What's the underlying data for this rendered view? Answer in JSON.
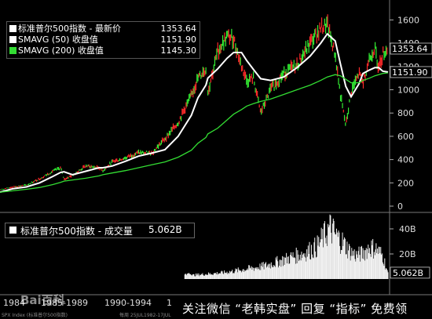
{
  "chart_data": [
    {
      "type": "line",
      "panel": "price",
      "y_axis_side": "right",
      "ylim": [
        0,
        1650
      ],
      "y_ticks": [
        "1600",
        "1400",
        "1200",
        "1000",
        "800",
        "600",
        "400",
        "200",
        "0"
      ],
      "y_tick_values": [
        1600,
        1400,
        1200,
        1000,
        800,
        600,
        400,
        200,
        0
      ],
      "x": [
        1983.0,
        1984.0,
        1985.0,
        1986.0,
        1987.0,
        1987.6,
        1987.85,
        1988.5,
        1989.5,
        1990.5,
        1990.8,
        1991.5,
        1992.5,
        1993.5,
        1994.5,
        1995.5,
        1996.5,
        1997.5,
        1998.0,
        1998.6,
        1998.75,
        1999.5,
        2000.2,
        2000.7,
        2001.3,
        2001.7,
        2002.2,
        2002.75,
        2003.5,
        2004.5,
        2005.5,
        2006.5,
        2007.3,
        2007.8,
        2008.4,
        2008.8,
        2009.2,
        2009.6,
        2010.2,
        2010.5,
        2011.0,
        2011.4,
        2011.7,
        2012.0,
        2012.4
      ],
      "series": [
        {
          "name": "标准普尔500指数",
          "color": "#ff2020",
          "values": [
            140,
            165,
            180,
            235,
            300,
            330,
            230,
            265,
            345,
            330,
            305,
            380,
            415,
            460,
            455,
            580,
            720,
            950,
            1100,
            1180,
            980,
            1330,
            1460,
            1440,
            1200,
            1080,
            1100,
            800,
            1000,
            1140,
            1210,
            1400,
            1530,
            1560,
            1300,
            950,
            690,
            980,
            1140,
            1060,
            1280,
            1360,
            1180,
            1310,
            1354
          ]
        },
        {
          "name": "SMAVG (50)",
          "color": "#ffffff",
          "values": [
            120,
            150,
            165,
            200,
            255,
            290,
            295,
            270,
            300,
            330,
            330,
            345,
            385,
            430,
            455,
            485,
            600,
            780,
            930,
            1040,
            1100,
            1180,
            1270,
            1320,
            1320,
            1250,
            1175,
            1095,
            1080,
            1110,
            1190,
            1290,
            1400,
            1480,
            1420,
            1220,
            1030,
            940,
            1050,
            1140,
            1170,
            1190,
            1190,
            1160,
            1152
          ]
        },
        {
          "name": "SMAVG (200)",
          "color": "#33dd33",
          "values": [
            120,
            132,
            145,
            160,
            185,
            205,
            215,
            225,
            240,
            260,
            270,
            285,
            305,
            330,
            355,
            380,
            420,
            480,
            540,
            590,
            620,
            670,
            740,
            790,
            830,
            860,
            880,
            900,
            920,
            960,
            1000,
            1040,
            1080,
            1110,
            1130,
            1120,
            1090,
            1060,
            1060,
            1080,
            1100,
            1120,
            1130,
            1140,
            1145
          ]
        }
      ],
      "legend": [
        {
          "label": "标准普尔500指数 - 最新价",
          "value": "1353.64",
          "color": "#ffffff"
        },
        {
          "label": "SMAVG (50) 收盘值",
          "value": "1151.90",
          "color": "#ffffff"
        },
        {
          "label": "SMAVG (200) 收盘值",
          "value": "1145.30",
          "color": "#33dd33"
        }
      ],
      "value_labels": [
        {
          "text": "1353.64",
          "value": 1353.64
        },
        {
          "text": "1151.90",
          "value": 1151.9
        }
      ],
      "grid": false
    },
    {
      "type": "bar",
      "panel": "volume",
      "y_axis_side": "right",
      "ylim": [
        0,
        50
      ],
      "y_ticks": [
        "40B",
        "20B"
      ],
      "y_tick_values": [
        40,
        20
      ],
      "x": [
        1983,
        1984,
        1985,
        1986,
        1987,
        1988,
        1989,
        1990,
        1991,
        1992,
        1993,
        1994,
        1995,
        1996,
        1997,
        1998,
        1999,
        2000,
        2001,
        2002,
        2003,
        2004,
        2005,
        2006,
        2007,
        2008,
        2008.5,
        2009,
        2009.5,
        2010,
        2010.5,
        2011,
        2011.5,
        2012,
        2012.4
      ],
      "values": [
        0,
        0,
        0,
        0,
        0,
        0,
        0,
        0,
        0,
        0,
        0,
        0,
        0,
        0,
        3,
        4,
        5,
        6,
        8,
        10,
        12,
        16,
        20,
        24,
        30,
        48,
        40,
        34,
        26,
        22,
        24,
        30,
        28,
        22,
        5
      ],
      "legend": "标准普尔500指数 - 成交量",
      "legend_value": "5.062B",
      "last_label": "5.062B"
    }
  ],
  "legend": {
    "rows": [
      {
        "label": "标准普尔500指数 - 最新价",
        "value": "1353.64",
        "color": "#ffffff"
      },
      {
        "label": "SMAVG (50) 收盘值",
        "value": "1151.90",
        "color": "#ffffff"
      },
      {
        "label": "SMAVG (200) 收盘值",
        "value": "1145.30",
        "color": "#33dd33"
      }
    ]
  },
  "volume_legend": {
    "label": "标准普尔500指数 - 成交量",
    "value": "5.062B"
  },
  "x_axis": {
    "labels": [
      "1984",
      "1985-1989",
      "1990-1994",
      "1"
    ]
  },
  "footer_meta": {
    "left": "SPX Index (标准普尔500指数)",
    "mid": "每周 25JUL1982-17JUL"
  },
  "watermark": {
    "logo": "Bai百科",
    "note": "关注微信 “老韩实盘” 回复 “指标” 免费领"
  }
}
